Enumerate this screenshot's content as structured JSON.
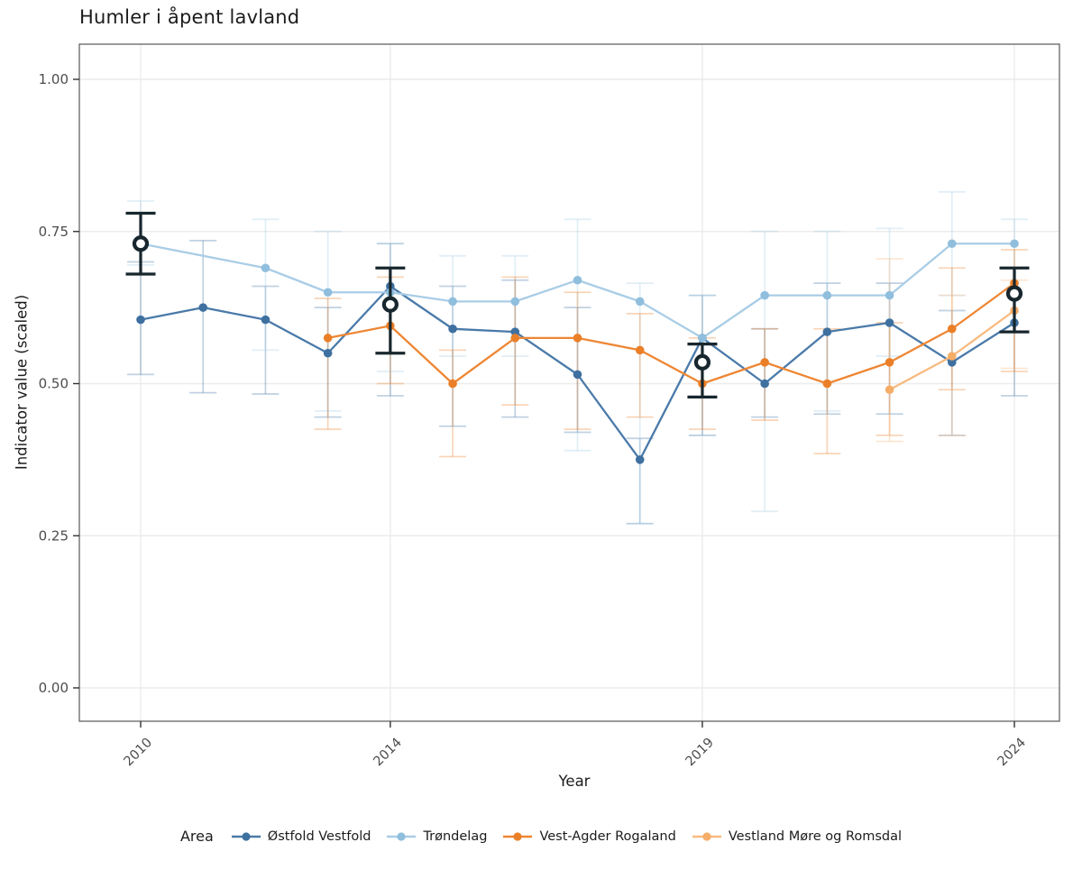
{
  "title": "Humler i åpent lavland",
  "legend": {
    "title": "Area"
  },
  "style": {
    "grid_color": "#ececec",
    "panel_border_color": "#575757",
    "tick_color": "#333333",
    "tick_label_color": "#4d4d4d",
    "summary_color": "#18272e",
    "errorbar_opacity": 0.35
  },
  "chart_data": {
    "type": "line",
    "title": "Humler i åpent lavland",
    "xlabel": "Year",
    "ylabel": "Indicator value (scaled)",
    "x_ticks": [
      2010,
      2014,
      2019,
      2024
    ],
    "y_ticks": [
      {
        "v": 0.0,
        "label": "0.00"
      },
      {
        "v": 0.25,
        "label": "0.25"
      },
      {
        "v": 0.5,
        "label": "0.50"
      },
      {
        "v": 0.75,
        "label": "0.75"
      },
      {
        "v": 1.0,
        "label": "1.00"
      }
    ],
    "x_range": [
      2010,
      2024
    ],
    "ylim": [
      0,
      1.05
    ],
    "grid": true,
    "legend_position": "bottom",
    "series": [
      {
        "name": "Østfold Vestfold",
        "color": "#4a7aa9",
        "point_color": "#3e70a0",
        "points": [
          {
            "x": 2010,
            "y": 0.605,
            "lo": 0.515,
            "hi": 0.7
          },
          {
            "x": 2011,
            "y": 0.625,
            "lo": 0.485,
            "hi": 0.735
          },
          {
            "x": 2012,
            "y": 0.605,
            "lo": 0.483,
            "hi": 0.66
          },
          {
            "x": 2013,
            "y": 0.55,
            "lo": 0.445,
            "hi": 0.625
          },
          {
            "x": 2014,
            "y": 0.66,
            "lo": 0.48,
            "hi": 0.73
          },
          {
            "x": 2015,
            "y": 0.59,
            "lo": 0.43,
            "hi": 0.66
          },
          {
            "x": 2016,
            "y": 0.585,
            "lo": 0.445,
            "hi": 0.67
          },
          {
            "x": 2017,
            "y": 0.515,
            "lo": 0.42,
            "hi": 0.625
          },
          {
            "x": 2018,
            "y": 0.375,
            "lo": 0.27,
            "hi": 0.41
          },
          {
            "x": 2019,
            "y": 0.575,
            "lo": 0.415,
            "hi": 0.645
          },
          {
            "x": 2020,
            "y": 0.5,
            "lo": 0.445,
            "hi": 0.59
          },
          {
            "x": 2021,
            "y": 0.585,
            "lo": 0.45,
            "hi": 0.665
          },
          {
            "x": 2022,
            "y": 0.6,
            "lo": 0.45,
            "hi": 0.665
          },
          {
            "x": 2023,
            "y": 0.535,
            "lo": 0.415,
            "hi": 0.62
          },
          {
            "x": 2024,
            "y": 0.6,
            "lo": 0.48,
            "hi": 0.69
          }
        ]
      },
      {
        "name": "Trøndelag",
        "color": "#a9cde6",
        "point_color": "#90bedd",
        "points": [
          {
            "x": 2010,
            "y": 0.73,
            "lo": 0.695,
            "hi": 0.8
          },
          {
            "x": 2012,
            "y": 0.69,
            "lo": 0.555,
            "hi": 0.77
          },
          {
            "x": 2013,
            "y": 0.65,
            "lo": 0.455,
            "hi": 0.75
          },
          {
            "x": 2014,
            "y": 0.65,
            "lo": 0.52,
            "hi": 0.73
          },
          {
            "x": 2015,
            "y": 0.635,
            "lo": 0.545,
            "hi": 0.71
          },
          {
            "x": 2016,
            "y": 0.635,
            "lo": 0.545,
            "hi": 0.71
          },
          {
            "x": 2017,
            "y": 0.67,
            "lo": 0.39,
            "hi": 0.77
          },
          {
            "x": 2018,
            "y": 0.635,
            "lo": 0.27,
            "hi": 0.665
          },
          {
            "x": 2019,
            "y": 0.575,
            "lo": 0.415,
            "hi": 0.645
          },
          {
            "x": 2020,
            "y": 0.645,
            "lo": 0.29,
            "hi": 0.75
          },
          {
            "x": 2021,
            "y": 0.645,
            "lo": 0.455,
            "hi": 0.75
          },
          {
            "x": 2022,
            "y": 0.645,
            "lo": 0.545,
            "hi": 0.755
          },
          {
            "x": 2023,
            "y": 0.73,
            "lo": 0.645,
            "hi": 0.815
          },
          {
            "x": 2024,
            "y": 0.73,
            "lo": 0.69,
            "hi": 0.77
          }
        ]
      },
      {
        "name": "Vest-Agder Rogaland",
        "color": "#ee8633",
        "point_color": "#ea7f28",
        "points": [
          {
            "x": 2013,
            "y": 0.575,
            "lo": 0.425,
            "hi": 0.64
          },
          {
            "x": 2014,
            "y": 0.595,
            "lo": 0.5,
            "hi": 0.675
          },
          {
            "x": 2015,
            "y": 0.5,
            "lo": 0.38,
            "hi": 0.555
          },
          {
            "x": 2016,
            "y": 0.575,
            "lo": 0.465,
            "hi": 0.675
          },
          {
            "x": 2017,
            "y": 0.575,
            "lo": 0.425,
            "hi": 0.65
          },
          {
            "x": 2018,
            "y": 0.555,
            "lo": 0.445,
            "hi": 0.615
          },
          {
            "x": 2019,
            "y": 0.5,
            "lo": 0.425,
            "hi": 0.575
          },
          {
            "x": 2020,
            "y": 0.535,
            "lo": 0.44,
            "hi": 0.59
          },
          {
            "x": 2021,
            "y": 0.5,
            "lo": 0.385,
            "hi": 0.59
          },
          {
            "x": 2022,
            "y": 0.535,
            "lo": 0.415,
            "hi": 0.6
          },
          {
            "x": 2023,
            "y": 0.59,
            "lo": 0.49,
            "hi": 0.69
          },
          {
            "x": 2024,
            "y": 0.665,
            "lo": 0.52,
            "hi": 0.72
          }
        ]
      },
      {
        "name": "Vestland Møre og Romsdal",
        "color": "#f8ba80",
        "point_color": "#f5ad68",
        "points": [
          {
            "x": 2022,
            "y": 0.49,
            "lo": 0.405,
            "hi": 0.705
          },
          {
            "x": 2023,
            "y": 0.545,
            "lo": 0.415,
            "hi": 0.645
          },
          {
            "x": 2024,
            "y": 0.62,
            "lo": 0.525,
            "hi": 0.67
          }
        ]
      }
    ],
    "summary_points": [
      {
        "x": 2010,
        "y": 0.73,
        "lo": 0.68,
        "hi": 0.78
      },
      {
        "x": 2014,
        "y": 0.63,
        "lo": 0.55,
        "hi": 0.69
      },
      {
        "x": 2019,
        "y": 0.535,
        "lo": 0.478,
        "hi": 0.565
      },
      {
        "x": 2024,
        "y": 0.648,
        "lo": 0.585,
        "hi": 0.69
      }
    ]
  }
}
